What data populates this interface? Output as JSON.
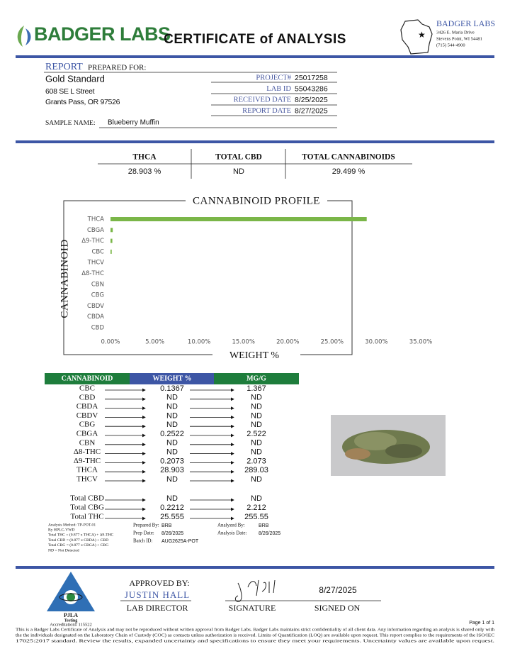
{
  "header": {
    "logo_text": "BADGER LABS",
    "title": "CERTIFICATE of ANALYSIS",
    "lab_name": "BADGER LABS",
    "address": [
      "3426 E. Maria Drive",
      "Stevens Point, WI 54481",
      "(715) 544-4900"
    ]
  },
  "report": {
    "label": "REPORT",
    "prepared_for_label": "PREPARED FOR:",
    "client": {
      "name": "Gold Standard",
      "street": "608 SE L Street",
      "city": "Grants Pass, OR 97526"
    },
    "fields": [
      {
        "label": "PROJECT#",
        "value": "25017258"
      },
      {
        "label": "LAB ID",
        "value": "55043286"
      },
      {
        "label": "RECEIVED DATE",
        "value": "8/25/2025"
      },
      {
        "label": "REPORT DATE",
        "value": "8/27/2025"
      }
    ],
    "sample_name_label": "SAMPLE NAME:",
    "sample_name": "Blueberry Muffin"
  },
  "summary": {
    "headers": [
      "THCA",
      "TOTAL CBD",
      "TOTAL CANNABINOIDS"
    ],
    "values": [
      "28.903 %",
      "ND",
      "29.499 %"
    ]
  },
  "chart_data": {
    "type": "hbar",
    "title": "CANNABINOID PROFILE",
    "y_label": "CANNABINOID",
    "x_label": "WEIGHT %",
    "categories": [
      "THCA",
      "CBGA",
      "Δ9-THC",
      "CBC",
      "THCV",
      "Δ8-THC",
      "CBN",
      "CBG",
      "CBDV",
      "CBDA",
      "CBD"
    ],
    "values": [
      28.903,
      0.2522,
      0.2073,
      0.1367,
      0,
      0,
      0,
      0,
      0,
      0,
      0
    ],
    "color": "#7ab648",
    "xlim": [
      0,
      35
    ],
    "xticks": [
      {
        "value": 0,
        "label": "0.00%"
      },
      {
        "value": 5,
        "label": "5.00%"
      },
      {
        "value": 10,
        "label": "10.00%"
      },
      {
        "value": 15,
        "label": "15.00%"
      },
      {
        "value": 20,
        "label": "20.00%"
      },
      {
        "value": 25,
        "label": "25.00%"
      },
      {
        "value": 30,
        "label": "30.00%"
      },
      {
        "value": 35,
        "label": "35.00%"
      }
    ]
  },
  "results": {
    "headers": [
      "CANNABINOID",
      "WEIGHT %",
      "MG/G"
    ],
    "rows": [
      [
        "CBC",
        "0.1367",
        "1.367"
      ],
      [
        "CBD",
        "ND",
        "ND"
      ],
      [
        "CBDA",
        "ND",
        "ND"
      ],
      [
        "CBDV",
        "ND",
        "ND"
      ],
      [
        "CBG",
        "ND",
        "ND"
      ],
      [
        "CBGA",
        "0.2522",
        "2.522"
      ],
      [
        "CBN",
        "ND",
        "ND"
      ],
      [
        "Δ8-THC",
        "ND",
        "ND"
      ],
      [
        "Δ9-THC",
        "0.2073",
        "2.073"
      ],
      [
        "THCA",
        "28.903",
        "289.03"
      ],
      [
        "THCV",
        "ND",
        "ND"
      ]
    ],
    "totals": [
      [
        "Total CBD",
        "ND",
        "ND"
      ],
      [
        "Total CBG",
        "0.2212",
        "2.212"
      ],
      [
        "Total THC",
        "25.555",
        "255.55"
      ]
    ]
  },
  "method_notes": [
    "Analysis Method: TP-POT-01",
    "By HPLC-VWD",
    "Total THC = (0.877 x  THCA) + Δ9-THC",
    "Total CBD = (0.877 x  CBDA) + CBD",
    "Total CBG = (0.877 x  CBGA) + CBG",
    "ND = Not Detected"
  ],
  "prep": {
    "prepared_by_label": "Prepared By:",
    "prepared_by": "BRB",
    "prep_date_label": "Prep Date:",
    "prep_date": "8/26/2025",
    "batch_label": "Batch ID:",
    "batch": "AUG2625A-POT",
    "analyzed_by_label": "Analyzed By:",
    "analyzed_by": "BRB",
    "analysis_date_label": "Analysis Date:",
    "analysis_date": "8/26/2025"
  },
  "footer": {
    "accreditation_org": "PJLA",
    "accreditation_sub": "Testing",
    "accreditation": "Accreditation# 115522",
    "approved_by_label": "APPROVED BY:",
    "approver": "JUSTIN HALL",
    "approver_title": "LAB DIRECTOR",
    "signature_label": "SIGNATURE",
    "signed_date": "8/27/2025",
    "signed_on_label": "SIGNED ON",
    "page": "Page 1 of 1",
    "disclaimer": [
      "This is a Badger Labs Certificate of Analysis and may not be reproduced without written approval from Badger Labs. Badger Labs maintains strict confidentiality of all client data. Any information regarding an analysis is shared only with",
      "the the individuals designated on the Laboratory Chain of Custody (COC) as contacts unless authorization is received. Limits of Quantification (LOQ) are available upon request. This report complies to the requirements of the ISO/IEC",
      "17025:2017 standard. Review the results, expanded uncertainty and specifications to ensure they meet your requirements. Uncertainty values are available upon request."
    ]
  }
}
